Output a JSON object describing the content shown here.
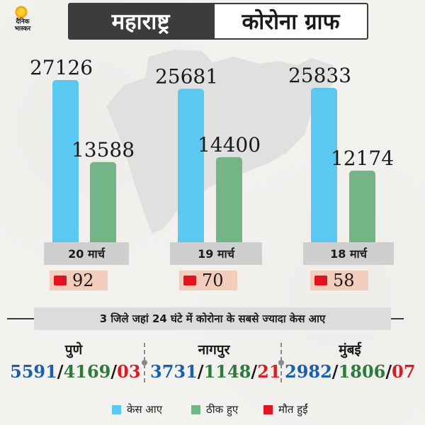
{
  "header": {
    "logo_line1": "दैनिक",
    "logo_line2": "भास्कर",
    "title_left": "महाराष्ट्र",
    "title_right": "कोरोना ग्राफ"
  },
  "colors": {
    "cases": "#5ac8f0",
    "recovered": "#73b587",
    "deaths": "#e0141e"
  },
  "chart_data": {
    "type": "bar",
    "title": "",
    "categories": [
      "20 मार्च",
      "19 मार्च",
      "18 मार्च"
    ],
    "series": [
      {
        "name": "केस आए",
        "values": [
          27126,
          25681,
          25833
        ]
      },
      {
        "name": "ठीक हुए",
        "values": [
          13588,
          14400,
          12174
        ]
      },
      {
        "name": "मौत हुईं",
        "values": [
          92,
          70,
          58
        ]
      }
    ],
    "ylim": [
      0,
      30000
    ],
    "grid": false,
    "legend": "bottom"
  },
  "chart": {
    "cases_labels": [
      "27126",
      "25681",
      "25833"
    ],
    "recovered_labels": [
      "13588",
      "14400",
      "12174"
    ],
    "dates": [
      "20 मार्च",
      "19 मार्च",
      "18 मार्च"
    ],
    "deaths": [
      "92",
      "70",
      "58"
    ]
  },
  "districts": {
    "heading": "3 जिले जहां 24 घंटे में कोरोना के सबसे ज्यादा केस आए",
    "separator": "/",
    "items": [
      {
        "name": "पुणे",
        "cases": "5591",
        "recovered": "4169",
        "deaths": "03"
      },
      {
        "name": "नागपुर",
        "cases": "3731",
        "recovered": "1148",
        "deaths": "21"
      },
      {
        "name": "मुंबई",
        "cases": "2982",
        "recovered": "1806",
        "deaths": "07"
      }
    ]
  },
  "legend": {
    "cases": "केस आए",
    "recovered": "ठीक हुए",
    "deaths": "मौत हुईं"
  }
}
